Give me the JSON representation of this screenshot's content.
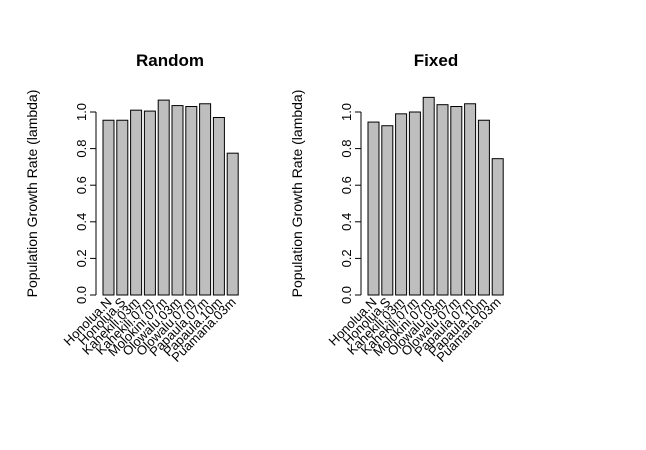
{
  "chart_data": [
    {
      "type": "bar",
      "title": "Random",
      "ylabel": "Population Growth Rate (lambda)",
      "xlabel": "",
      "ylim": [
        0,
        1.08
      ],
      "yticks": [
        "0.0",
        "0.2",
        "0.4",
        "0.6",
        "0.8",
        "1.0"
      ],
      "categories": [
        "Honolua.N",
        "Honolua.S",
        "Kahekili.03m",
        "Kahekili.07m",
        "Molokini.07m",
        "Olowalu.03m",
        "Olowalu.07m",
        "Papaula.07m",
        "Papaula.10m",
        "Puamana.03m"
      ],
      "values": [
        0.955,
        0.955,
        1.01,
        1.005,
        1.065,
        1.035,
        1.03,
        1.045,
        0.97,
        0.775
      ],
      "grid": false,
      "bar_color": "#bebebe"
    },
    {
      "type": "bar",
      "title": "Fixed",
      "ylabel": "Population Growth Rate (lambda)",
      "xlabel": "",
      "ylim": [
        0,
        1.08
      ],
      "yticks": [
        "0.0",
        "0.2",
        "0.4",
        "0.6",
        "0.8",
        "1.0"
      ],
      "categories": [
        "Honolua.N",
        "Honolua.S",
        "Kahekili.03m",
        "Kahekili.07m",
        "Molokini.07m",
        "Olowalu.03m",
        "Olowalu.07m",
        "Papaula.07m",
        "Papaula.10m",
        "Puamana.03m"
      ],
      "values": [
        0.945,
        0.925,
        0.99,
        1.0,
        1.08,
        1.04,
        1.03,
        1.045,
        0.955,
        0.745
      ],
      "grid": false,
      "bar_color": "#bebebe"
    }
  ]
}
